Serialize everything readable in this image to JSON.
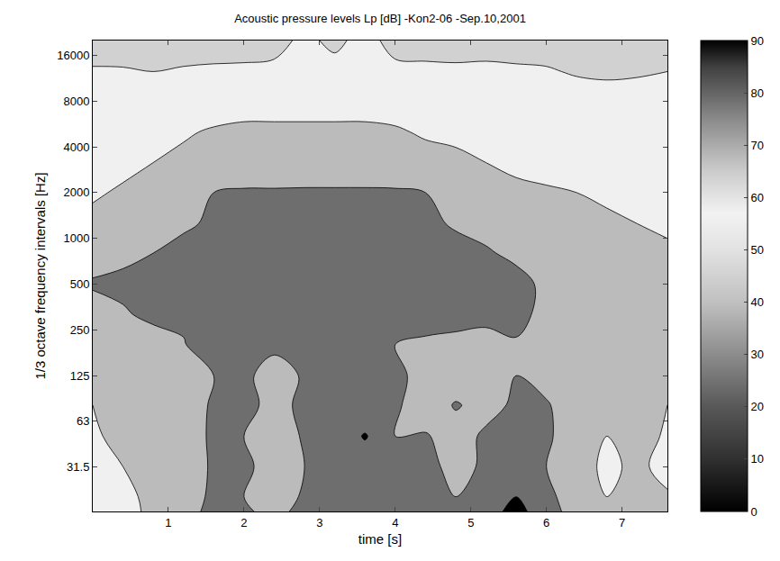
{
  "chart_data": {
    "type": "contour",
    "title": "Acoustic pressure levels Lp [dB] -Kon2-06 -Sep.10,2001",
    "x_label": "time [s]",
    "y_label": "1/3 octave frequency intervals [Hz]",
    "log": "y",
    "x": [
      0,
      0.4,
      0.8,
      1.2,
      1.6,
      2.0,
      2.4,
      2.8,
      3.2,
      3.6,
      4.0,
      4.4,
      4.8,
      5.2,
      5.6,
      6.0,
      6.4,
      6.8,
      7.2,
      7.6
    ],
    "y": [
      16,
      20,
      31.5,
      50,
      80,
      125,
      200,
      315,
      500,
      800,
      1250,
      2000,
      3150,
      5000,
      8000,
      12500,
      20000
    ],
    "z": [
      [
        58,
        57,
        62,
        66,
        73,
        71,
        68,
        72,
        74,
        72,
        73,
        74,
        71,
        75,
        84,
        73,
        67,
        62,
        64,
        62
      ],
      [
        55,
        58,
        62,
        65,
        72,
        70,
        66,
        71,
        73,
        71,
        72,
        73,
        70,
        74,
        80,
        72,
        66,
        60,
        63,
        61
      ],
      [
        57,
        60,
        63,
        66,
        71,
        72,
        66,
        70,
        72,
        73,
        71,
        72,
        68,
        71,
        72,
        70,
        64,
        58,
        62,
        57
      ],
      [
        59,
        62,
        63,
        64,
        72,
        70,
        65,
        71,
        72,
        81,
        70,
        71,
        65,
        72,
        71,
        72,
        63,
        60,
        66,
        58
      ],
      [
        60,
        61,
        64,
        66,
        71,
        73,
        67,
        72,
        73,
        71,
        72,
        63,
        71,
        66,
        72,
        71,
        64,
        62,
        64,
        60
      ],
      [
        61,
        62,
        63,
        65,
        70,
        72,
        66,
        71,
        72,
        73,
        74,
        64,
        63,
        63,
        70,
        66,
        62,
        70,
        63,
        62
      ],
      [
        63,
        64,
        66,
        69,
        80,
        73,
        72,
        72,
        73,
        72,
        70,
        68,
        67,
        66,
        69,
        66,
        64,
        62,
        61,
        60
      ],
      [
        66,
        69,
        72,
        73,
        74,
        75,
        75,
        76,
        76,
        75,
        75,
        75,
        74,
        73,
        73,
        67,
        65,
        63,
        62,
        61
      ],
      [
        71,
        72,
        73,
        74,
        74,
        75,
        75,
        76,
        77,
        76,
        76,
        75,
        75,
        74,
        73,
        68,
        66,
        64,
        63,
        62
      ],
      [
        66,
        68,
        70,
        72,
        73,
        74,
        75,
        75,
        76,
        75,
        75,
        74,
        73,
        71,
        68,
        66,
        64,
        63,
        62,
        61
      ],
      [
        62,
        64,
        66,
        69,
        71,
        72,
        73,
        73,
        73,
        73,
        73,
        72,
        69,
        67,
        65,
        63,
        62,
        61,
        60,
        59
      ],
      [
        59,
        61,
        63,
        64,
        70,
        71,
        71,
        71,
        71,
        71,
        71,
        70,
        66,
        64,
        62,
        61,
        60,
        59,
        58,
        58
      ],
      [
        57,
        58,
        60,
        62,
        63,
        64,
        64,
        65,
        65,
        65,
        64,
        63,
        62,
        60,
        58,
        57,
        57,
        56,
        56,
        56
      ],
      [
        56,
        57,
        58,
        59,
        61,
        62,
        62,
        62,
        62,
        62,
        61,
        59,
        58,
        57,
        57,
        56,
        56,
        56,
        55,
        56
      ],
      [
        54,
        54,
        55,
        55,
        55,
        56,
        56,
        56,
        56,
        56,
        56,
        56,
        56,
        55,
        55,
        55,
        55,
        55,
        54,
        54
      ],
      [
        51,
        51,
        50,
        51,
        52,
        52,
        52,
        53,
        53,
        53,
        52,
        52,
        52,
        52,
        52,
        51,
        49,
        48,
        49,
        50
      ],
      [
        45,
        44,
        46,
        45,
        44,
        45,
        47,
        52,
        48,
        53,
        47,
        46,
        45,
        46,
        44,
        45,
        43,
        42,
        44,
        45
      ]
    ],
    "levels": {
      "start": 10,
      "end": 80,
      "size": 10
    },
    "xlim": [
      0,
      7.6
    ],
    "xticks": [
      1,
      2,
      3,
      4,
      5,
      6,
      7
    ],
    "ylim": [
      16,
      20000
    ],
    "yticks": [
      31.5,
      63,
      125,
      250,
      500,
      1000,
      2000,
      4000,
      8000,
      16000
    ],
    "colorbar": {
      "range": [
        0,
        90
      ],
      "ticks": [
        0,
        10,
        20,
        30,
        40,
        50,
        60,
        70,
        80,
        90
      ]
    }
  }
}
